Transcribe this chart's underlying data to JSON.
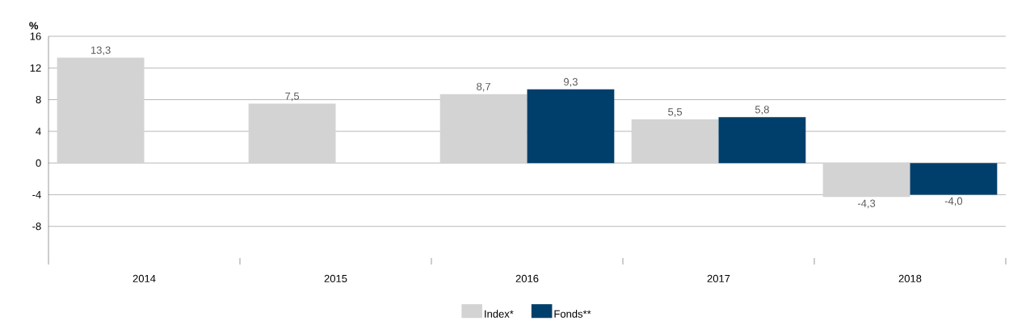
{
  "chart_data": {
    "type": "bar",
    "ylabel": "%",
    "categories": [
      "2014",
      "2015",
      "2016",
      "2017",
      "2018"
    ],
    "series": [
      {
        "name": "Index*",
        "color": "#d3d3d3",
        "values": [
          13.3,
          7.5,
          8.7,
          5.5,
          -4.3
        ],
        "value_labels": [
          "13,3",
          "7,5",
          "8,7",
          "5,5",
          "-4,3"
        ]
      },
      {
        "name": "Fonds**",
        "color": "#003f6b",
        "values": [
          null,
          null,
          9.3,
          5.8,
          -4.0
        ],
        "value_labels": [
          null,
          null,
          "9,3",
          "5,8",
          "-4,0"
        ]
      }
    ],
    "ylim": [
      -12,
      16
    ],
    "yticks": [
      -8,
      -4,
      0,
      4,
      8,
      12,
      16
    ],
    "grid": "y",
    "legend": "bottom"
  }
}
